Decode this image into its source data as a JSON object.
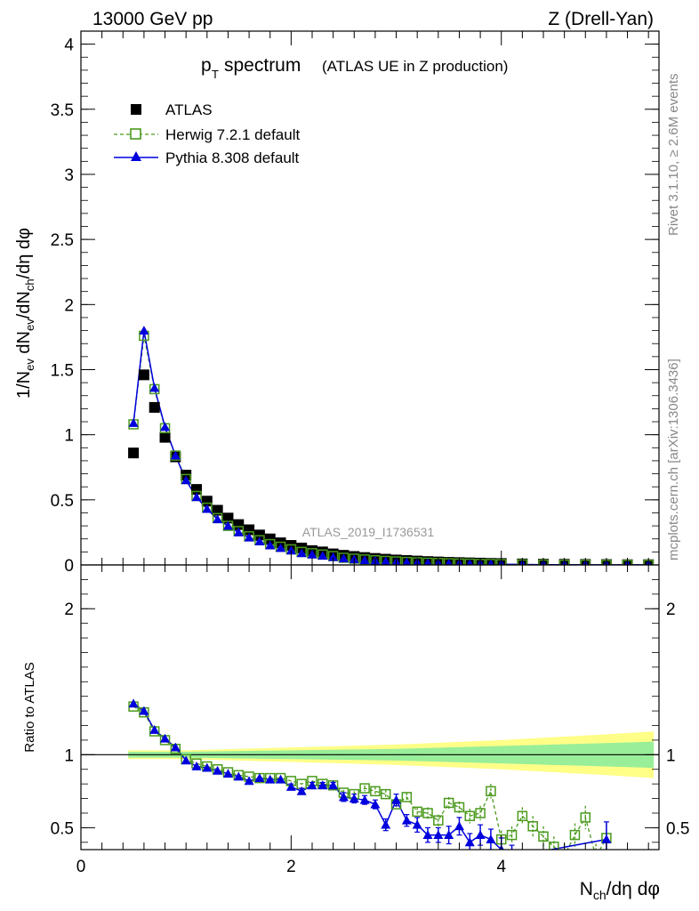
{
  "header": {
    "left": "13000 GeV pp",
    "right": "Z (Drell-Yan)"
  },
  "side_text": {
    "rivet": "Rivet 3.1.10, ≥ 2.6M events",
    "mcplots": "mcplots.cern.ch [arXiv:1306.3436]"
  },
  "watermark": "ATLAS_2019_I1736531",
  "chart_data": [
    {
      "type": "scatter",
      "panel": "main",
      "title_main": "p",
      "title_sub": "T",
      "title_rest": " spectrum",
      "title_paren": "(ATLAS UE in Z production)",
      "ylabel": "1/N_ev dN_ev/dN_ch/dη dφ",
      "xlabel": "N_ch/dη dφ",
      "xlim": [
        0,
        5.5
      ],
      "ylim": [
        0,
        4.1
      ],
      "x_ticks": [
        0,
        2,
        4
      ],
      "y_ticks": [
        "0",
        "0.5",
        "1",
        "1.5",
        "2",
        "2.5",
        "3",
        "3.5",
        "4"
      ],
      "legend": [
        "ATLAS",
        "Herwig 7.2.1 default",
        "Pythia 8.308 default"
      ],
      "legend_position": "top-left",
      "x": [
        0.5,
        0.6,
        0.7,
        0.8,
        0.9,
        1.0,
        1.1,
        1.2,
        1.3,
        1.4,
        1.5,
        1.6,
        1.7,
        1.8,
        1.9,
        2.0,
        2.1,
        2.2,
        2.3,
        2.4,
        2.5,
        2.6,
        2.7,
        2.8,
        2.9,
        3.0,
        3.1,
        3.2,
        3.3,
        3.4,
        3.5,
        3.6,
        3.7,
        3.8,
        3.9,
        4.0,
        4.2,
        4.4,
        4.6,
        4.8,
        5.0,
        5.2,
        5.4
      ],
      "series": [
        {
          "name": "ATLAS",
          "color": "#000000",
          "values": [
            0.86,
            1.46,
            1.21,
            0.98,
            0.83,
            0.69,
            0.58,
            0.49,
            0.42,
            0.36,
            0.31,
            0.27,
            0.23,
            0.2,
            0.17,
            0.15,
            0.13,
            0.11,
            0.1,
            0.085,
            0.074,
            0.065,
            0.057,
            0.05,
            0.044,
            0.038,
            0.034,
            0.03,
            0.026,
            0.023,
            0.02,
            0.018,
            0.016,
            0.014,
            0.012,
            0.011,
            0.008,
            0.006,
            0.005,
            0.004,
            0.003,
            0.002,
            0.002
          ]
        },
        {
          "name": "Herwig 7.2.1 default",
          "color": "#4a9a1c",
          "values": [
            1.08,
            1.76,
            1.35,
            1.05,
            0.84,
            0.66,
            0.53,
            0.44,
            0.36,
            0.3,
            0.26,
            0.22,
            0.19,
            0.16,
            0.14,
            0.12,
            0.1,
            0.09,
            0.08,
            0.068,
            0.055,
            0.048,
            0.042,
            0.036,
            0.031,
            0.027,
            0.023,
            0.02,
            0.017,
            0.015,
            0.013,
            0.011,
            0.01,
            0.008,
            0.007,
            0.006,
            0.004,
            0.003,
            0.002,
            0.002,
            0.001,
            0.001,
            0.001
          ]
        },
        {
          "name": "Pythia 8.308 default",
          "color": "#0000dd",
          "values": [
            1.09,
            1.8,
            1.36,
            1.06,
            0.84,
            0.65,
            0.52,
            0.43,
            0.35,
            0.3,
            0.25,
            0.21,
            0.18,
            0.15,
            0.13,
            0.11,
            0.09,
            0.08,
            0.07,
            0.06,
            0.05,
            0.043,
            0.037,
            0.032,
            0.027,
            0.023,
            0.02,
            0.017,
            0.014,
            0.012,
            0.01,
            0.009,
            0.008,
            0.007,
            0.006,
            0.005,
            0.003,
            0.002,
            0.002,
            0.001,
            0.001,
            0.001,
            0.001
          ]
        }
      ]
    },
    {
      "type": "scatter",
      "panel": "ratio",
      "ylabel": "Ratio to ATLAS",
      "xlim": [
        0,
        5.5
      ],
      "ylim": [
        0.35,
        2.3
      ],
      "x_ticks": [
        "0",
        "2",
        "4"
      ],
      "y_ticks": [
        "0.5",
        "1",
        "2"
      ],
      "band_1sigma_color": "#99ee99",
      "band_2sigma_color": "#ffff88",
      "band_x": [
        0.45,
        1.0,
        2.0,
        3.0,
        4.0,
        4.5,
        5.0,
        5.45
      ],
      "band_inner": [
        0.02,
        0.02,
        0.03,
        0.04,
        0.06,
        0.07,
        0.08,
        0.09
      ],
      "band_outer": [
        0.03,
        0.03,
        0.05,
        0.07,
        0.1,
        0.12,
        0.14,
        0.16
      ],
      "series": [
        {
          "name": "Herwig 7.2.1 default",
          "color": "#4a9a1c",
          "x": [
            0.5,
            0.6,
            0.7,
            0.8,
            0.9,
            1.0,
            1.1,
            1.2,
            1.3,
            1.4,
            1.5,
            1.6,
            1.7,
            1.8,
            1.9,
            2.0,
            2.1,
            2.2,
            2.3,
            2.4,
            2.5,
            2.6,
            2.7,
            2.8,
            2.9,
            3.0,
            3.1,
            3.2,
            3.3,
            3.4,
            3.5,
            3.6,
            3.7,
            3.8,
            3.9,
            4.0,
            4.1,
            4.2,
            4.3,
            4.4,
            4.5,
            4.6,
            4.7,
            4.8,
            4.9,
            5.0
          ],
          "values": [
            1.33,
            1.29,
            1.16,
            1.1,
            1.04,
            0.97,
            0.94,
            0.92,
            0.9,
            0.88,
            0.86,
            0.85,
            0.84,
            0.84,
            0.84,
            0.82,
            0.8,
            0.82,
            0.8,
            0.79,
            0.74,
            0.73,
            0.77,
            0.75,
            0.73,
            0.66,
            0.71,
            0.61,
            0.6,
            0.55,
            0.67,
            0.64,
            0.58,
            0.6,
            0.75,
            0.42,
            0.45,
            0.58,
            0.51,
            0.44,
            0.37,
            0.31,
            0.45,
            0.57,
            0.3,
            0.43
          ],
          "errors": [
            0.01,
            0.01,
            0.01,
            0.01,
            0.01,
            0.01,
            0.01,
            0.01,
            0.01,
            0.01,
            0.01,
            0.01,
            0.01,
            0.01,
            0.01,
            0.01,
            0.01,
            0.01,
            0.02,
            0.02,
            0.02,
            0.02,
            0.02,
            0.03,
            0.03,
            0.03,
            0.03,
            0.03,
            0.04,
            0.04,
            0.04,
            0.04,
            0.05,
            0.05,
            0.05,
            0.06,
            0.06,
            0.06,
            0.07,
            0.07,
            0.07,
            0.08,
            0.08,
            0.08,
            0.09,
            0.09
          ]
        },
        {
          "name": "Pythia 8.308 default",
          "color": "#0000dd",
          "x": [
            0.5,
            0.6,
            0.7,
            0.8,
            0.9,
            1.0,
            1.1,
            1.2,
            1.3,
            1.4,
            1.5,
            1.6,
            1.7,
            1.8,
            1.9,
            2.0,
            2.1,
            2.2,
            2.3,
            2.4,
            2.5,
            2.6,
            2.7,
            2.8,
            2.9,
            3.0,
            3.1,
            3.2,
            3.3,
            3.4,
            3.5,
            3.6,
            3.7,
            3.8,
            3.9,
            4.0,
            4.1,
            5.0
          ],
          "values": [
            1.35,
            1.3,
            1.17,
            1.11,
            1.05,
            0.96,
            0.92,
            0.91,
            0.89,
            0.87,
            0.85,
            0.82,
            0.84,
            0.83,
            0.83,
            0.78,
            0.75,
            0.79,
            0.79,
            0.79,
            0.71,
            0.7,
            0.69,
            0.66,
            0.52,
            0.69,
            0.55,
            0.52,
            0.45,
            0.45,
            0.45,
            0.51,
            0.4,
            0.45,
            0.42,
            0.35,
            0.3,
            0.42
          ],
          "errors": [
            0.01,
            0.01,
            0.01,
            0.01,
            0.01,
            0.01,
            0.01,
            0.01,
            0.01,
            0.01,
            0.01,
            0.01,
            0.01,
            0.01,
            0.01,
            0.02,
            0.02,
            0.02,
            0.02,
            0.02,
            0.03,
            0.03,
            0.03,
            0.03,
            0.04,
            0.04,
            0.04,
            0.05,
            0.05,
            0.05,
            0.06,
            0.06,
            0.06,
            0.07,
            0.07,
            0.08,
            0.08,
            0.12
          ]
        }
      ]
    }
  ]
}
